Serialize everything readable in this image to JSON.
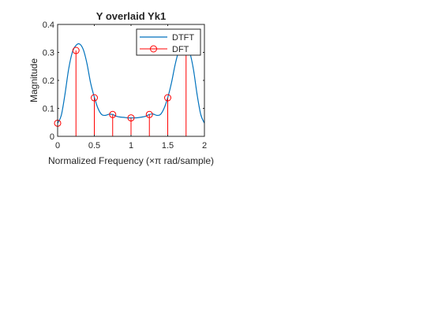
{
  "chart_data": {
    "type": "line",
    "title": "Y overlaid Yk1",
    "xlabel": "Normalized Frequency (×π rad/sample)",
    "ylabel": "Magnitude",
    "xlim": [
      0,
      2
    ],
    "ylim": [
      0,
      0.4
    ],
    "xticks": [
      "0",
      "0.5",
      "1",
      "1.5",
      "2"
    ],
    "yticks": [
      "0",
      "0.1",
      "0.2",
      "0.3",
      "0.4"
    ],
    "legend_position": "top-right",
    "grid": false,
    "series": [
      {
        "name": "DTFT",
        "style": "line",
        "color": "#0072BD",
        "x": [
          0,
          0.05,
          0.1,
          0.15,
          0.2,
          0.25,
          0.3,
          0.35,
          0.4,
          0.45,
          0.5,
          0.55,
          0.6,
          0.65,
          0.7,
          0.75,
          0.8,
          0.85,
          0.9,
          0.95,
          1.0,
          1.05,
          1.1,
          1.15,
          1.2,
          1.25,
          1.3,
          1.35,
          1.4,
          1.45,
          1.5,
          1.55,
          1.6,
          1.65,
          1.7,
          1.75,
          1.8,
          1.85,
          1.9,
          1.95,
          2.0
        ],
        "y": [
          0.047,
          0.075,
          0.15,
          0.24,
          0.3,
          0.325,
          0.33,
          0.31,
          0.26,
          0.19,
          0.14,
          0.1,
          0.078,
          0.075,
          0.079,
          0.078,
          0.072,
          0.069,
          0.068,
          0.066,
          0.066,
          0.066,
          0.067,
          0.069,
          0.072,
          0.078,
          0.08,
          0.075,
          0.078,
          0.1,
          0.138,
          0.19,
          0.255,
          0.305,
          0.33,
          0.325,
          0.3,
          0.24,
          0.15,
          0.078,
          0.047
        ]
      },
      {
        "name": "DFT",
        "style": "stem",
        "color": "#FF0000",
        "x": [
          0,
          0.25,
          0.5,
          0.75,
          1.0,
          1.25,
          1.5,
          1.75
        ],
        "y": [
          0.047,
          0.307,
          0.138,
          0.078,
          0.066,
          0.078,
          0.138,
          0.307
        ]
      }
    ]
  }
}
